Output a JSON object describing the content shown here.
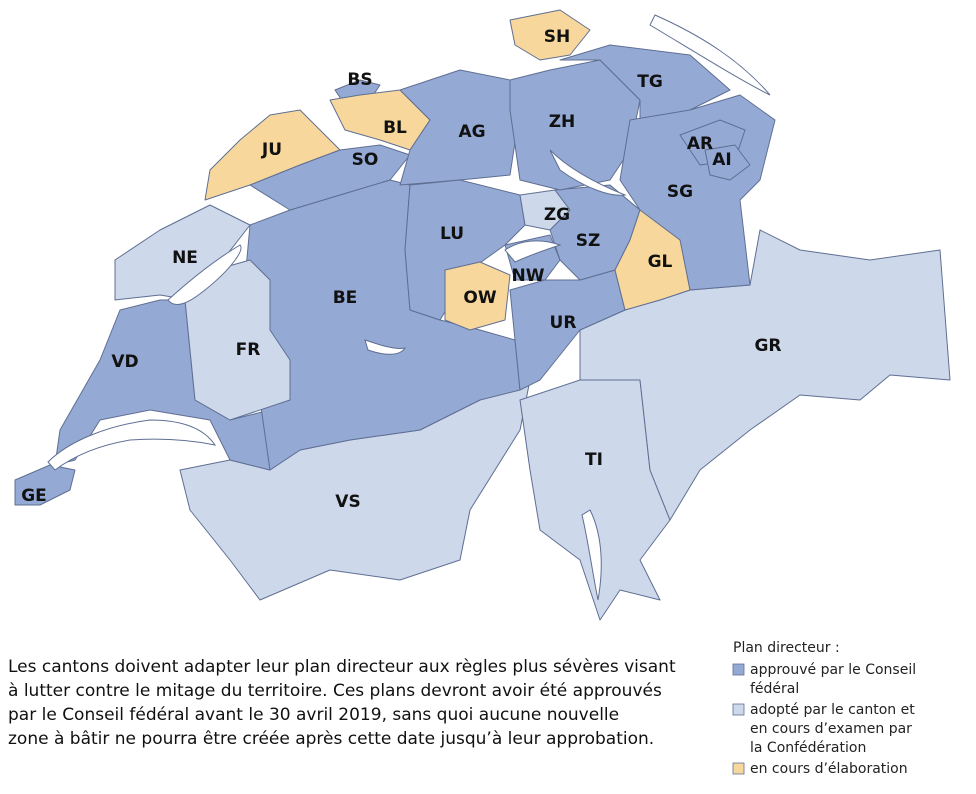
{
  "map": {
    "cantons": [
      {
        "label": "SH",
        "color": "#f8d79c"
      },
      {
        "label": "BS",
        "color": "#94a9d3"
      },
      {
        "label": "BL",
        "color": "#f8d79c"
      },
      {
        "label": "JU",
        "color": "#f8d79c"
      },
      {
        "label": "SO",
        "color": "#94a9d3"
      },
      {
        "label": "AG",
        "color": "#94a9d3"
      },
      {
        "label": "ZH",
        "color": "#94a9d3"
      },
      {
        "label": "TG",
        "color": "#94a9d3"
      },
      {
        "label": "AR",
        "color": "#94a9d3"
      },
      {
        "label": "AI",
        "color": "#94a9d3"
      },
      {
        "label": "SG",
        "color": "#94a9d3"
      },
      {
        "label": "ZG",
        "color": "#cdd8eb"
      },
      {
        "label": "LU",
        "color": "#94a9d3"
      },
      {
        "label": "SZ",
        "color": "#94a9d3"
      },
      {
        "label": "GL",
        "color": "#f8d79c"
      },
      {
        "label": "NE",
        "color": "#cdd8eb"
      },
      {
        "label": "NW",
        "color": "#94a9d3"
      },
      {
        "label": "OW",
        "color": "#f8d79c"
      },
      {
        "label": "BE",
        "color": "#94a9d3"
      },
      {
        "label": "UR",
        "color": "#94a9d3"
      },
      {
        "label": "FR",
        "color": "#cdd8eb"
      },
      {
        "label": "VD",
        "color": "#94a9d3"
      },
      {
        "label": "GR",
        "color": "#cdd8eb"
      },
      {
        "label": "TI",
        "color": "#cdd8eb"
      },
      {
        "label": "VS",
        "color": "#cdd8eb"
      },
      {
        "label": "GE",
        "color": "#94a9d3"
      }
    ],
    "caption": [
      "Les cantons doivent adapter leur plan directeur aux règles plus sévères visant",
      "à lutter contre le mitage du territoire. Ces plans devront avoir été approuvés",
      "par le Conseil fédéral avant le 30 avril 2019, sans quoi aucune nouvelle",
      "zone à bâtir ne pourra être créée après cette date jusqu’à leur approbation."
    ],
    "legend": {
      "title": "Plan directeur :",
      "items": [
        {
          "color": "#94a9d3",
          "lines": [
            "approuvé par le Conseil",
            "fédéral"
          ]
        },
        {
          "color": "#cdd8eb",
          "lines": [
            "adopté par le canton et",
            "en cours d’examen par",
            "la Confédération"
          ]
        },
        {
          "color": "#f8d79c",
          "lines": [
            "en cours d’élaboration"
          ]
        }
      ]
    }
  }
}
